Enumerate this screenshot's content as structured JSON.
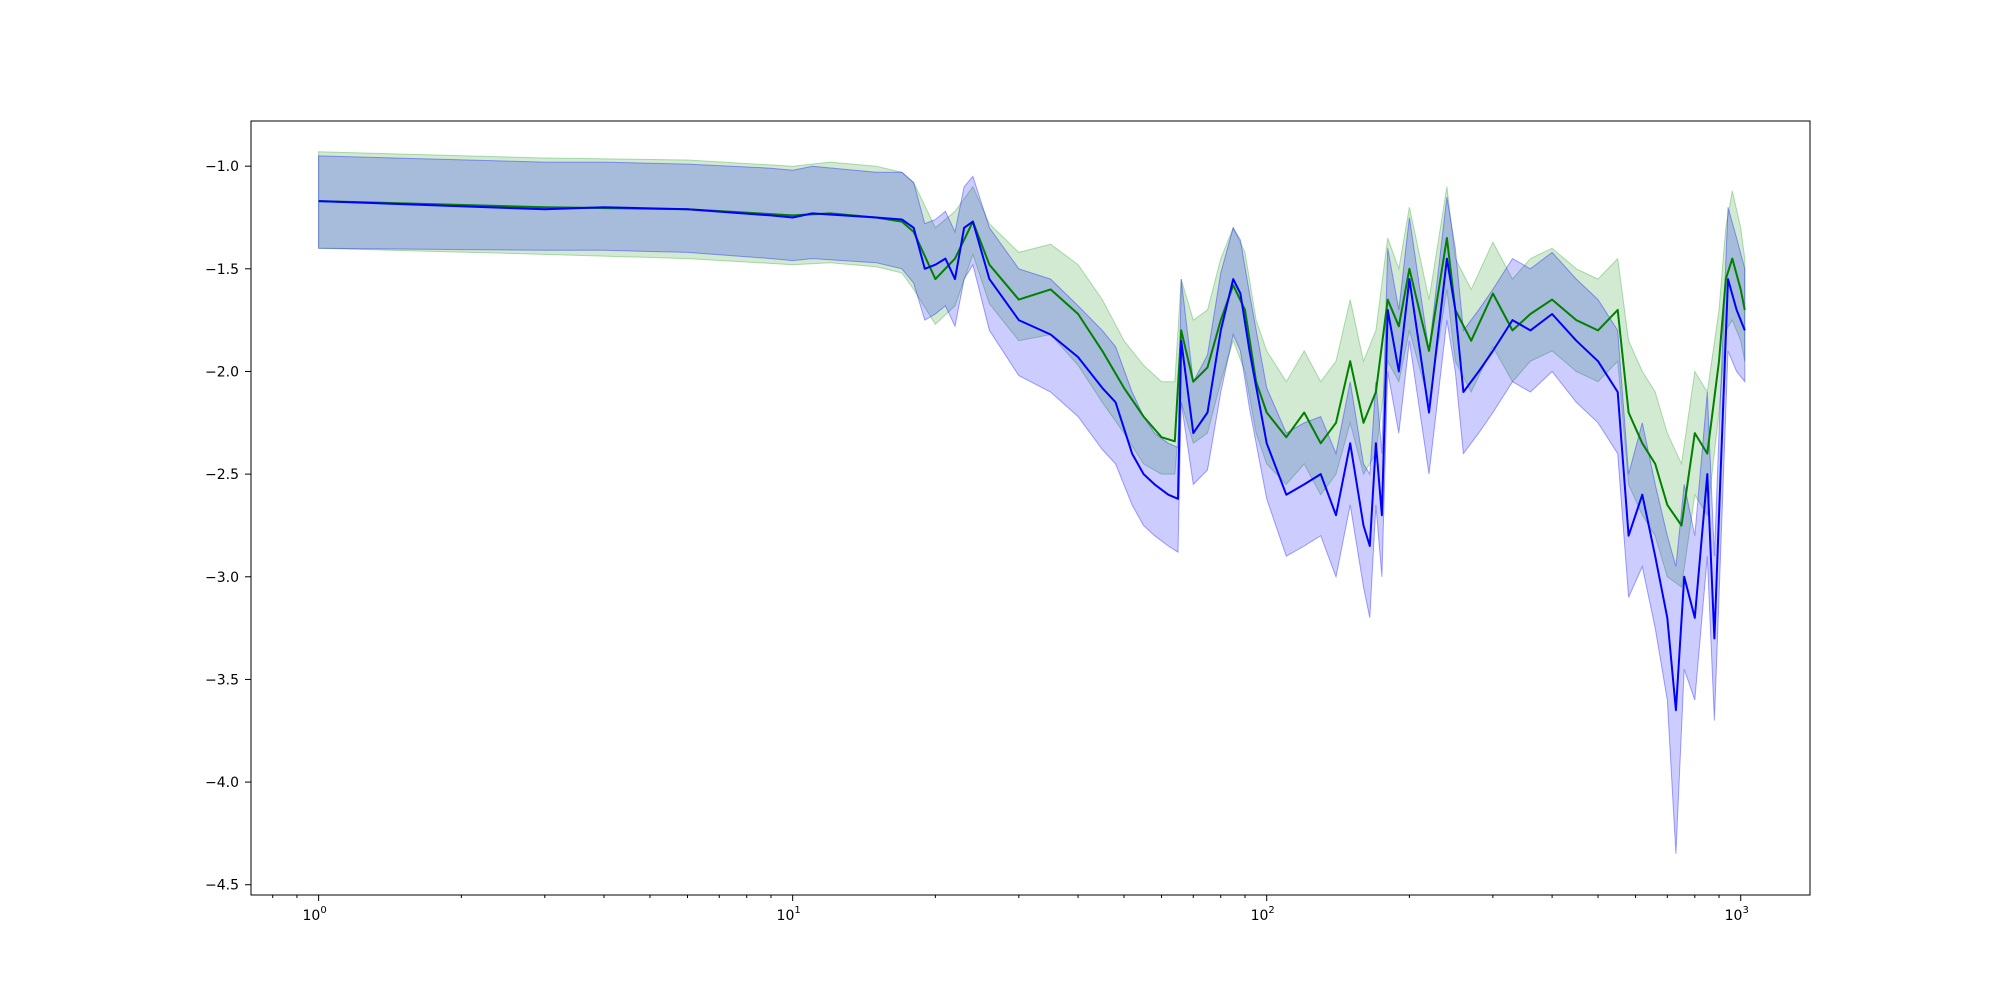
{
  "chart_data": {
    "type": "line",
    "title": "",
    "xlabel": "",
    "ylabel": "",
    "xscale": "log",
    "xlim": [
      0.72,
      1400
    ],
    "ylim": [
      -4.55,
      -0.78
    ],
    "grid": false,
    "legend": "none",
    "x_ticks": [
      {
        "value": 1,
        "base": "10",
        "exp": "0"
      },
      {
        "value": 10,
        "base": "10",
        "exp": "1"
      },
      {
        "value": 100,
        "base": "10",
        "exp": "2"
      },
      {
        "value": 1000,
        "base": "10",
        "exp": "3"
      }
    ],
    "y_ticks": [
      {
        "value": -1.0,
        "label": "−1.0"
      },
      {
        "value": -1.5,
        "label": "−1.5"
      },
      {
        "value": -2.0,
        "label": "−2.0"
      },
      {
        "value": -2.5,
        "label": "−2.5"
      },
      {
        "value": -3.0,
        "label": "−3.0"
      },
      {
        "value": -3.5,
        "label": "−3.5"
      },
      {
        "value": -4.0,
        "label": "−4.0"
      },
      {
        "value": -4.5,
        "label": "−4.5"
      }
    ],
    "series": [
      {
        "color": "#008000",
        "band_color": "#2ca02c",
        "band_opacity": 0.22,
        "x": [
          1,
          3,
          6,
          10,
          12,
          15,
          17,
          18,
          20,
          22,
          24,
          26,
          30,
          35,
          40,
          45,
          50,
          55,
          60,
          64,
          66,
          70,
          75,
          80,
          85,
          90,
          95,
          100,
          110,
          120,
          130,
          140,
          150,
          160,
          170,
          180,
          190,
          200,
          220,
          240,
          250,
          270,
          300,
          330,
          360,
          400,
          450,
          500,
          550,
          580,
          620,
          660,
          700,
          750,
          800,
          850,
          900,
          930,
          960,
          1000,
          1020
        ],
        "y": [
          -1.17,
          -1.2,
          -1.21,
          -1.24,
          -1.23,
          -1.25,
          -1.27,
          -1.32,
          -1.55,
          -1.45,
          -1.27,
          -1.48,
          -1.65,
          -1.6,
          -1.72,
          -1.9,
          -2.08,
          -2.22,
          -2.32,
          -2.34,
          -1.8,
          -2.05,
          -1.98,
          -1.75,
          -1.58,
          -1.7,
          -2.05,
          -2.2,
          -2.32,
          -2.2,
          -2.35,
          -2.25,
          -1.95,
          -2.25,
          -2.1,
          -1.65,
          -1.78,
          -1.5,
          -1.9,
          -1.35,
          -1.7,
          -1.85,
          -1.62,
          -1.8,
          -1.72,
          -1.65,
          -1.75,
          -1.8,
          -1.7,
          -2.2,
          -2.35,
          -2.45,
          -2.65,
          -2.75,
          -2.3,
          -2.4,
          -1.95,
          -1.55,
          -1.45,
          -1.6,
          -1.7
        ],
        "lower": [
          -1.4,
          -1.43,
          -1.45,
          -1.48,
          -1.47,
          -1.49,
          -1.52,
          -1.6,
          -1.77,
          -1.68,
          -1.43,
          -1.67,
          -1.85,
          -1.82,
          -1.97,
          -2.15,
          -2.3,
          -2.45,
          -2.5,
          -2.5,
          -2.15,
          -2.35,
          -2.3,
          -2.05,
          -1.85,
          -2.0,
          -2.3,
          -2.45,
          -2.55,
          -2.45,
          -2.6,
          -2.5,
          -2.25,
          -2.5,
          -2.4,
          -1.95,
          -2.05,
          -1.8,
          -2.15,
          -1.6,
          -1.95,
          -2.1,
          -1.88,
          -2.05,
          -1.95,
          -1.9,
          -2.0,
          -2.05,
          -1.95,
          -2.55,
          -2.7,
          -2.8,
          -3.0,
          -3.05,
          -2.6,
          -2.7,
          -2.2,
          -1.8,
          -1.75,
          -1.85,
          -1.95
        ],
        "upper": [
          -0.93,
          -0.96,
          -0.97,
          -1.0,
          -0.98,
          -1.0,
          -1.03,
          -1.08,
          -1.3,
          -1.22,
          -1.1,
          -1.28,
          -1.42,
          -1.38,
          -1.48,
          -1.65,
          -1.85,
          -1.97,
          -2.05,
          -2.05,
          -1.55,
          -1.75,
          -1.7,
          -1.45,
          -1.3,
          -1.42,
          -1.75,
          -1.9,
          -2.05,
          -1.9,
          -2.05,
          -1.95,
          -1.65,
          -1.95,
          -1.8,
          -1.35,
          -1.5,
          -1.2,
          -1.65,
          -1.1,
          -1.45,
          -1.6,
          -1.37,
          -1.55,
          -1.45,
          -1.4,
          -1.5,
          -1.55,
          -1.45,
          -1.85,
          -2.0,
          -2.1,
          -2.3,
          -2.45,
          -2.0,
          -2.1,
          -1.7,
          -1.3,
          -1.12,
          -1.3,
          -1.45
        ]
      },
      {
        "color": "#0000ff",
        "band_color": "#0000ff",
        "band_opacity": 0.2,
        "x": [
          1,
          3,
          4,
          6,
          9,
          10,
          11,
          15,
          17,
          18,
          19,
          20,
          21,
          22,
          23,
          24,
          26,
          30,
          35,
          40,
          45,
          48,
          52,
          55,
          58,
          62,
          65,
          66,
          70,
          75,
          80,
          85,
          88,
          92,
          100,
          110,
          120,
          130,
          140,
          150,
          160,
          165,
          170,
          175,
          180,
          190,
          200,
          220,
          240,
          250,
          260,
          280,
          300,
          330,
          360,
          400,
          450,
          500,
          550,
          580,
          620,
          660,
          700,
          730,
          760,
          800,
          850,
          880,
          900,
          940,
          980,
          1020
        ],
        "y": [
          -1.17,
          -1.21,
          -1.2,
          -1.21,
          -1.24,
          -1.25,
          -1.23,
          -1.25,
          -1.26,
          -1.3,
          -1.5,
          -1.48,
          -1.45,
          -1.55,
          -1.3,
          -1.27,
          -1.55,
          -1.75,
          -1.82,
          -1.93,
          -2.08,
          -2.15,
          -2.4,
          -2.5,
          -2.55,
          -2.6,
          -2.62,
          -1.85,
          -2.3,
          -2.2,
          -1.8,
          -1.55,
          -1.62,
          -1.9,
          -2.35,
          -2.6,
          -2.55,
          -2.5,
          -2.7,
          -2.35,
          -2.75,
          -2.85,
          -2.35,
          -2.7,
          -1.7,
          -2.0,
          -1.55,
          -2.2,
          -1.45,
          -1.7,
          -2.1,
          -2.0,
          -1.9,
          -1.75,
          -1.8,
          -1.72,
          -1.85,
          -1.95,
          -2.1,
          -2.8,
          -2.6,
          -2.9,
          -3.2,
          -3.65,
          -3.0,
          -3.2,
          -2.5,
          -3.3,
          -2.7,
          -1.55,
          -1.7,
          -1.8
        ],
        "lower": [
          -1.4,
          -1.41,
          -1.41,
          -1.42,
          -1.45,
          -1.46,
          -1.45,
          -1.47,
          -1.5,
          -1.57,
          -1.75,
          -1.72,
          -1.68,
          -1.78,
          -1.55,
          -1.48,
          -1.8,
          -2.02,
          -2.1,
          -2.22,
          -2.38,
          -2.45,
          -2.65,
          -2.75,
          -2.8,
          -2.85,
          -2.88,
          -2.15,
          -2.55,
          -2.48,
          -2.1,
          -1.82,
          -1.9,
          -2.18,
          -2.62,
          -2.9,
          -2.85,
          -2.8,
          -3.0,
          -2.65,
          -3.05,
          -3.2,
          -2.65,
          -3.0,
          -2.0,
          -2.3,
          -1.85,
          -2.5,
          -1.75,
          -2.0,
          -2.4,
          -2.3,
          -2.2,
          -2.05,
          -2.1,
          -2.0,
          -2.15,
          -2.25,
          -2.4,
          -3.1,
          -2.95,
          -3.25,
          -3.6,
          -4.35,
          -3.45,
          -3.6,
          -2.9,
          -3.7,
          -3.1,
          -1.9,
          -2.0,
          -2.05
        ],
        "upper": [
          -0.95,
          -0.98,
          -0.98,
          -0.99,
          -1.01,
          -1.02,
          -1.0,
          -1.03,
          -1.03,
          -1.08,
          -1.28,
          -1.26,
          -1.22,
          -1.32,
          -1.1,
          -1.05,
          -1.3,
          -1.5,
          -1.55,
          -1.68,
          -1.8,
          -1.88,
          -2.1,
          -2.22,
          -2.3,
          -2.35,
          -2.37,
          -1.55,
          -2.05,
          -1.92,
          -1.52,
          -1.3,
          -1.36,
          -1.62,
          -2.08,
          -2.3,
          -2.25,
          -2.22,
          -2.4,
          -2.05,
          -2.45,
          -2.5,
          -2.05,
          -2.4,
          -1.4,
          -1.7,
          -1.25,
          -1.9,
          -1.15,
          -1.4,
          -1.8,
          -1.7,
          -1.6,
          -1.45,
          -1.5,
          -1.42,
          -1.55,
          -1.65,
          -1.8,
          -2.5,
          -2.25,
          -2.55,
          -2.8,
          -2.95,
          -2.55,
          -2.8,
          -2.1,
          -2.9,
          -2.3,
          -1.2,
          -1.35,
          -1.5
        ]
      }
    ]
  }
}
